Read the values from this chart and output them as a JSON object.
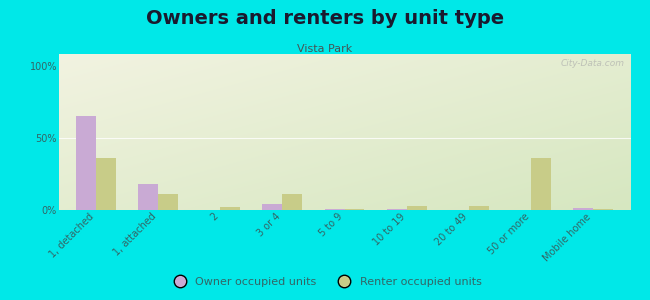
{
  "title": "Owners and renters by unit type",
  "subtitle": "Vista Park",
  "categories": [
    "1, detached",
    "1, attached",
    "2",
    "3 or 4",
    "5 to 9",
    "10 to 19",
    "20 to 49",
    "50 or more",
    "Mobile home"
  ],
  "owner_values": [
    65,
    18,
    0,
    4,
    0.5,
    0.5,
    0,
    0,
    1.5
  ],
  "renter_values": [
    36,
    11,
    2,
    11,
    0.5,
    2.5,
    2.5,
    36,
    0.5
  ],
  "owner_color": "#c9aad4",
  "renter_color": "#c8cc88",
  "bg_color": "#00e8e8",
  "plot_bg_topleft": "#f0f2e0",
  "plot_bg_bottomright": "#d8e8c0",
  "ylabel_ticks": [
    "0%",
    "50%",
    "100%"
  ],
  "yticks": [
    0,
    50,
    100
  ],
  "ylim": [
    0,
    108
  ],
  "bar_width": 0.32,
  "title_fontsize": 14,
  "subtitle_fontsize": 8,
  "tick_fontsize": 7,
  "legend_fontsize": 8,
  "watermark_text": "City-Data.com"
}
